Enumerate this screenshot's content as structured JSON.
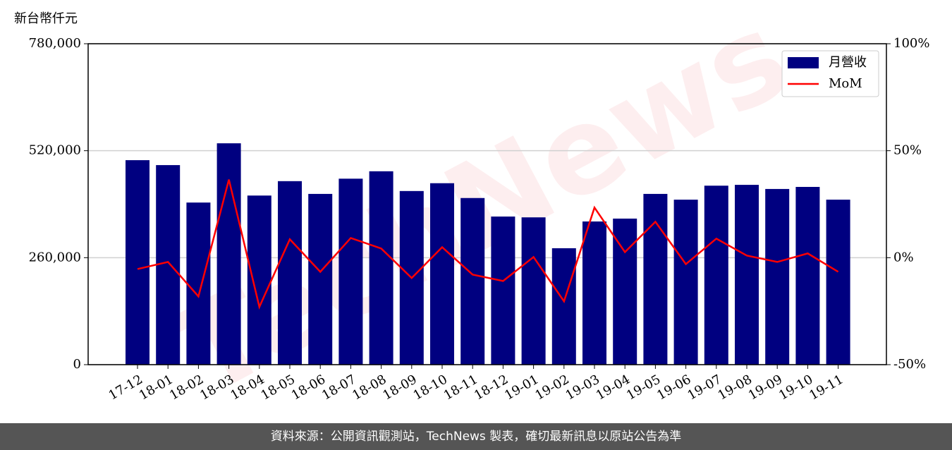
{
  "chart_data": {
    "type": "bar_line",
    "y_label": "新台幣仟元",
    "watermark": "TechNews",
    "footer": "資料來源：公開資訊觀測站，TechNews 製表，確切最新訊息以原站公告為準",
    "categories": [
      "17-12",
      "18-01",
      "18-02",
      "18-03",
      "18-04",
      "18-05",
      "18-06",
      "18-07",
      "18-08",
      "18-09",
      "18-10",
      "18-11",
      "18-12",
      "19-01",
      "19-02",
      "19-03",
      "19-04",
      "19-05",
      "19-06",
      "19-07",
      "19-08",
      "19-09",
      "19-10",
      "19-11"
    ],
    "series": [
      {
        "name": "月營收",
        "color": "#000080",
        "values": [
          497000,
          485000,
          394000,
          538000,
          411000,
          446000,
          415000,
          452000,
          470000,
          422000,
          441000,
          405000,
          360000,
          358000,
          283000,
          348000,
          355000,
          415000,
          401000,
          435000,
          437000,
          427000,
          432000,
          401000
        ]
      },
      {
        "name": "MoM",
        "color": "#ff0000",
        "axis": "y2",
        "values": [
          -5.3,
          -2.0,
          -18.1,
          36.5,
          -23.0,
          8.6,
          -6.6,
          9.2,
          4.3,
          -9.5,
          4.9,
          -7.9,
          -10.9,
          0.3,
          -20.4,
          23.4,
          2.6,
          16.8,
          -3.0,
          8.9,
          1.0,
          -2.0,
          2.0,
          -6.6
        ]
      }
    ],
    "ylim": [
      0,
      780000
    ],
    "yticks": [
      0,
      {
        "value": 260000,
        "label": "260,000"
      },
      {
        "value": 520000,
        "label": "520,000"
      },
      {
        "value": 780000,
        "label": "780,000"
      }
    ],
    "y2lim": [
      -50,
      100
    ],
    "y2ticks": [
      {
        "value": -50,
        "label": "-50%"
      },
      {
        "value": 0,
        "label": "0%"
      },
      {
        "value": 50,
        "label": "50%"
      },
      {
        "value": 100,
        "label": "100%"
      }
    ],
    "grid": true,
    "legend": "upper right"
  }
}
